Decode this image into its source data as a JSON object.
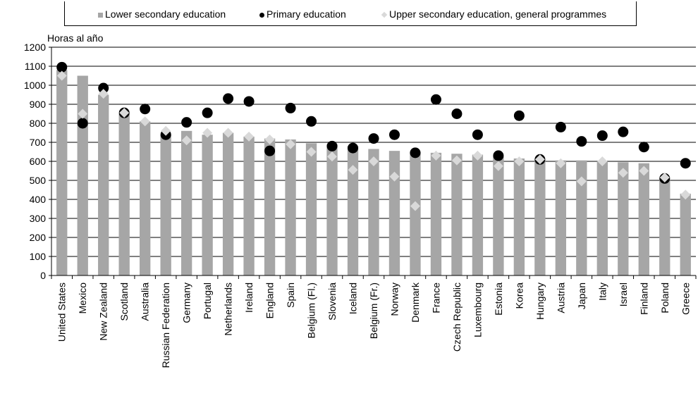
{
  "chart_data": {
    "type": "bar",
    "ylabel": "Horas al año",
    "ylim": [
      0,
      1200
    ],
    "yticks": [
      0,
      100,
      200,
      300,
      400,
      500,
      600,
      700,
      800,
      900,
      1000,
      1100,
      1200
    ],
    "grid": true,
    "legend_position": "top",
    "categories": [
      "United States",
      "Mexico",
      "New Zealand",
      "Scotland",
      "Australia",
      "Russian Federation",
      "Germany",
      "Portugal",
      "Netherlands",
      "Ireland",
      "England",
      "Spain",
      "Belgium (Fl.)",
      "Slovenia",
      "Iceland",
      "Belgium (Fr.)",
      "Norway",
      "Denmark",
      "France",
      "Czech Republic",
      "Luxembourg",
      "Estonia",
      "Korea",
      "Hungary",
      "Austria",
      "Japan",
      "Italy",
      "Israel",
      "Finland",
      "Poland",
      "Greece"
    ],
    "series": [
      {
        "name": "Lower secondary education",
        "type": "bar",
        "color": "#a6a6a6",
        "values": [
          1080,
          1050,
          950,
          850,
          810,
          740,
          760,
          740,
          750,
          730,
          720,
          715,
          695,
          690,
          680,
          665,
          655,
          650,
          645,
          640,
          635,
          625,
          615,
          610,
          605,
          605,
          600,
          595,
          590,
          505,
          430
        ]
      },
      {
        "name": "Primary education",
        "type": "scatter",
        "marker": "circle",
        "color": "#000000",
        "values": [
          1095,
          800,
          985,
          855,
          875,
          740,
          805,
          855,
          930,
          915,
          655,
          880,
          810,
          680,
          670,
          720,
          740,
          645,
          925,
          850,
          740,
          630,
          840,
          610,
          780,
          705,
          735,
          755,
          675,
          510,
          590
        ]
      },
      {
        "name": "Upper secondary education, general programmes",
        "type": "scatter",
        "marker": "diamond",
        "color": "#d9d9d9",
        "values": [
          1050,
          850,
          955,
          855,
          810,
          760,
          710,
          750,
          750,
          730,
          715,
          690,
          650,
          625,
          555,
          600,
          520,
          365,
          630,
          605,
          630,
          575,
          600,
          610,
          590,
          495,
          600,
          540,
          550,
          515,
          425
        ]
      }
    ]
  }
}
